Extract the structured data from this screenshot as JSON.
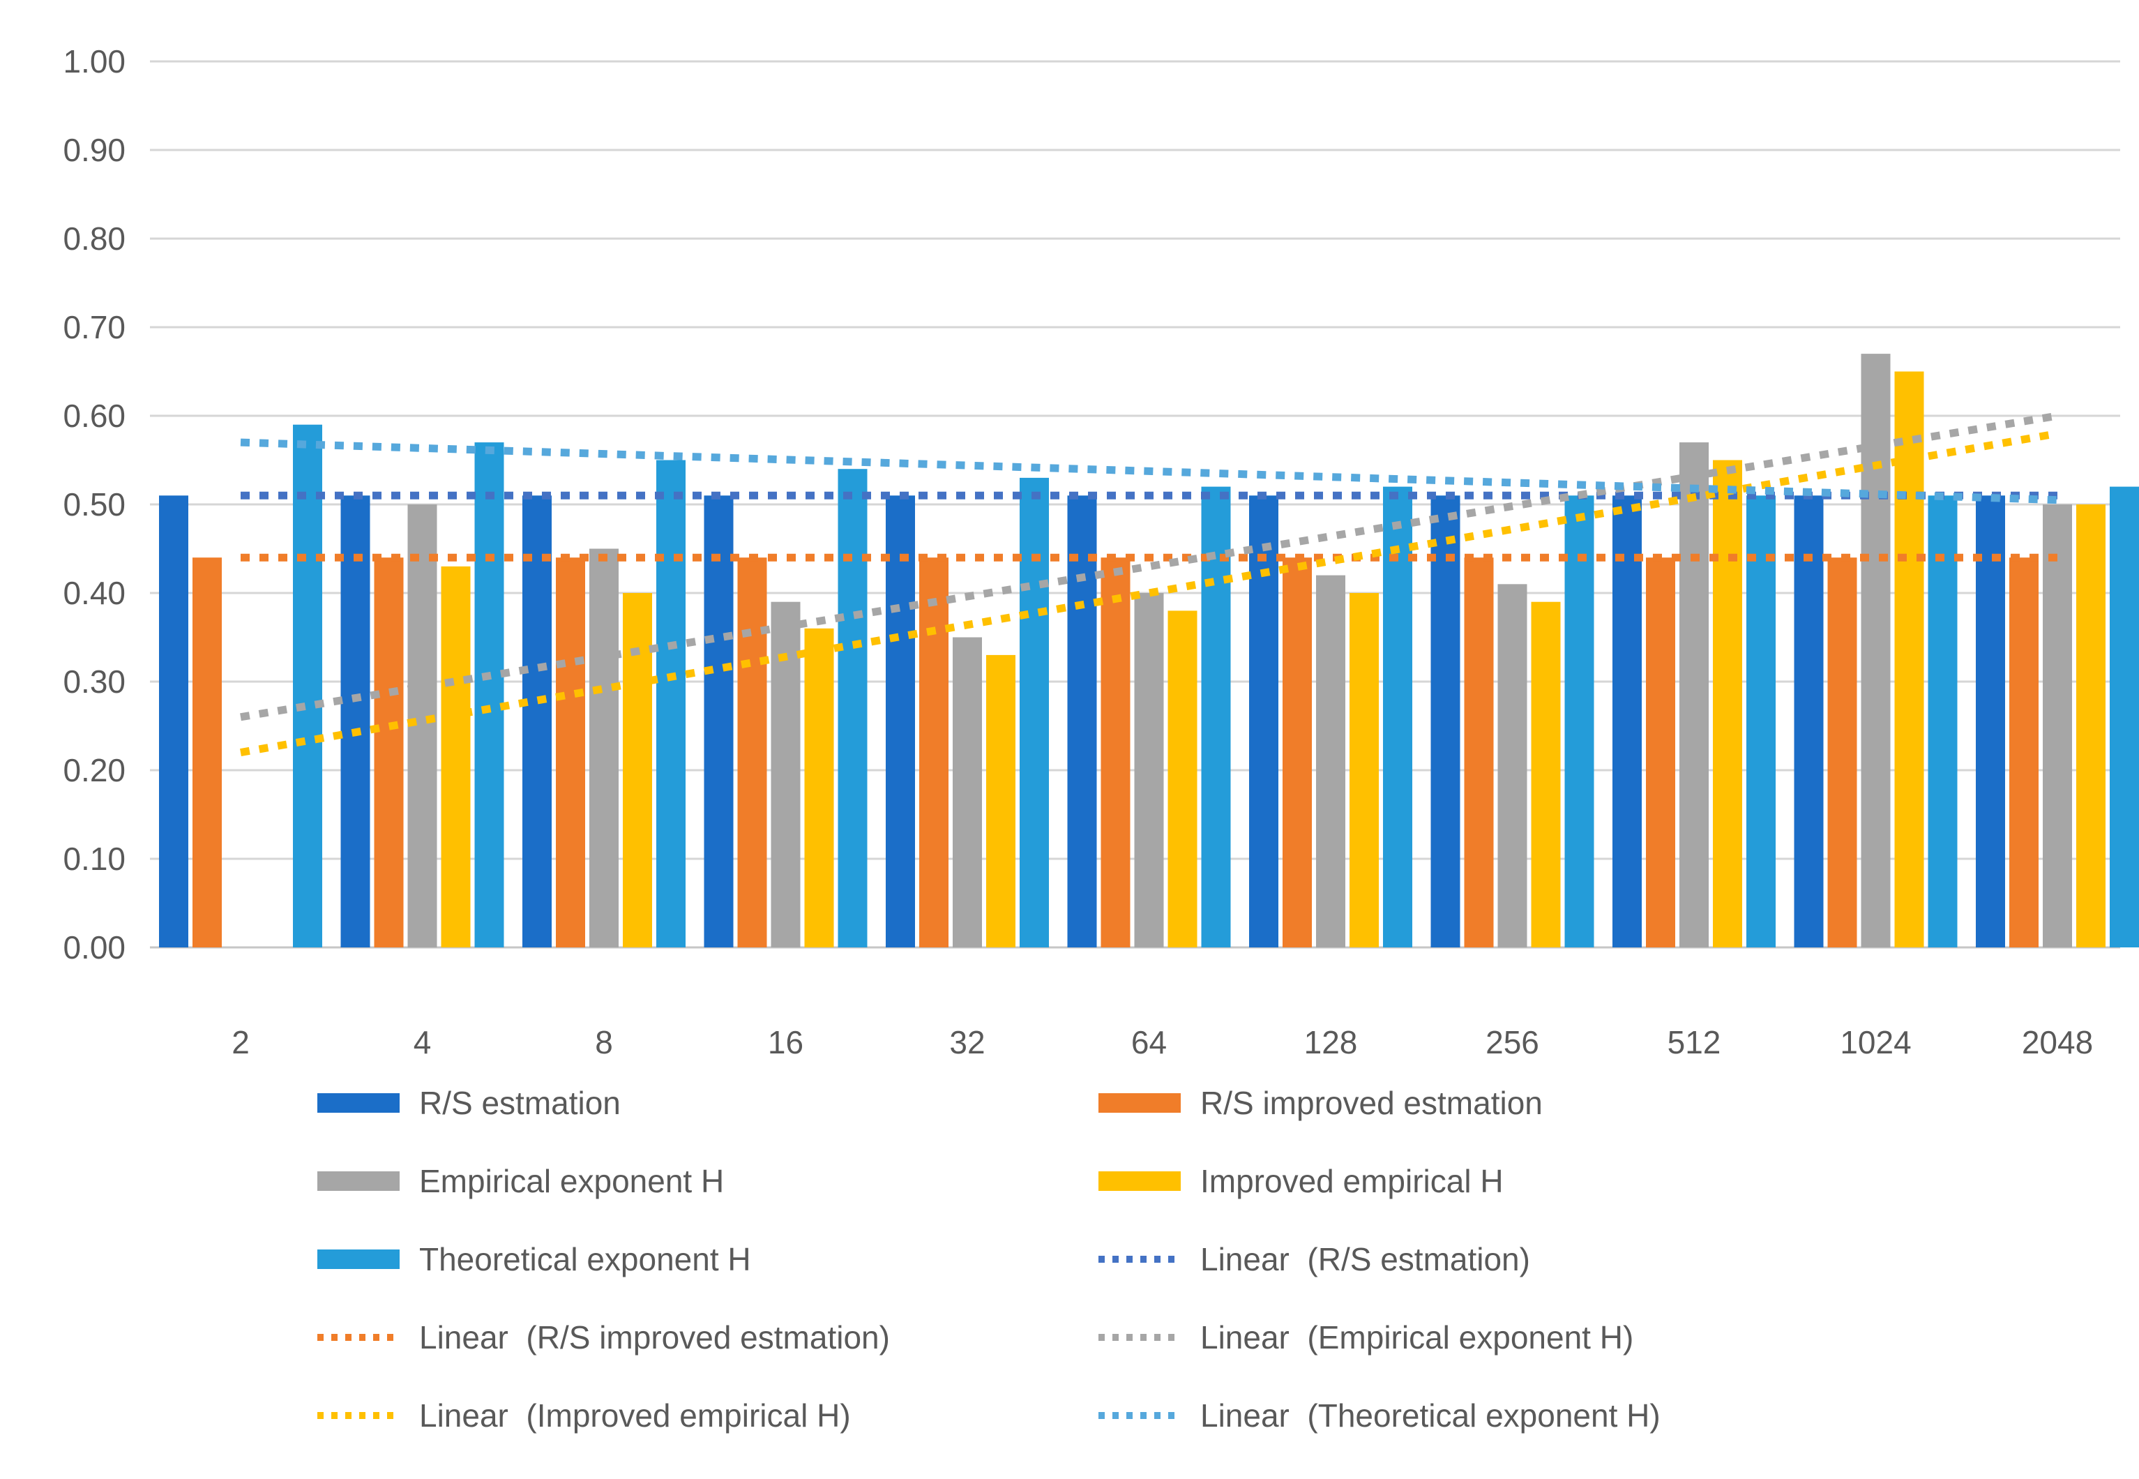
{
  "chart_data": {
    "type": "bar",
    "title": "",
    "xlabel": "",
    "ylabel": "",
    "categories": [
      "2",
      "4",
      "8",
      "16",
      "32",
      "64",
      "128",
      "256",
      "512",
      "1024",
      "2048"
    ],
    "series": [
      {
        "name": "R/S estmation",
        "color": "#1B6EC8",
        "values": [
          0.51,
          0.51,
          0.51,
          0.51,
          0.51,
          0.51,
          0.51,
          0.51,
          0.51,
          0.51,
          0.51
        ]
      },
      {
        "name": "R/S improved estmation",
        "color": "#F07D29",
        "values": [
          0.44,
          0.44,
          0.44,
          0.44,
          0.44,
          0.44,
          0.44,
          0.44,
          0.44,
          0.44,
          0.44
        ]
      },
      {
        "name": "Empirical exponent H",
        "color": "#A6A6A6",
        "values": [
          null,
          0.5,
          0.45,
          0.39,
          0.35,
          0.4,
          0.42,
          0.41,
          0.57,
          0.67,
          0.5
        ]
      },
      {
        "name": "Improved empirical H",
        "color": "#FFC000",
        "values": [
          null,
          0.43,
          0.4,
          0.36,
          0.33,
          0.38,
          0.4,
          0.39,
          0.55,
          0.65,
          0.5
        ]
      },
      {
        "name": "Theoretical exponent H",
        "color": "#249CD9",
        "values": [
          0.59,
          0.57,
          0.55,
          0.54,
          0.53,
          0.52,
          0.52,
          0.51,
          0.51,
          0.51,
          0.52
        ]
      }
    ],
    "trendlines": [
      {
        "name": "Linear  (R/S estmation)",
        "color": "#4472C4",
        "start": 0.51,
        "end": 0.51
      },
      {
        "name": "Linear  (R/S improved estmation)",
        "color": "#F07D29",
        "start": 0.44,
        "end": 0.44
      },
      {
        "name": "Linear  (Empirical exponent H)",
        "color": "#A6A6A6",
        "start": 0.26,
        "end": 0.6
      },
      {
        "name": "Linear  (Improved empirical H)",
        "color": "#FFC000",
        "start": 0.22,
        "end": 0.58
      },
      {
        "name": "Linear  (Theoretical exponent H)",
        "color": "#56A8DC",
        "start": 0.57,
        "end": 0.505
      }
    ],
    "ylim": [
      0.0,
      1.0
    ],
    "ytick_step": 0.1,
    "ytick_labels": [
      "0.00",
      "0.10",
      "0.20",
      "0.30",
      "0.40",
      "0.50",
      "0.60",
      "0.70",
      "0.80",
      "0.90",
      "1.00"
    ],
    "grid": true,
    "legend_position": "bottom"
  },
  "legend": {
    "items": [
      {
        "label": "R/S estmation",
        "marker": "bar",
        "color": "#1B6EC8"
      },
      {
        "label": "R/S improved estmation",
        "marker": "bar",
        "color": "#F07D29"
      },
      {
        "label": "Empirical exponent H",
        "marker": "bar",
        "color": "#A6A6A6"
      },
      {
        "label": "Improved empirical H",
        "marker": "bar",
        "color": "#FFC000"
      },
      {
        "label": "Theoretical exponent H",
        "marker": "bar",
        "color": "#249CD9"
      },
      {
        "label": "Linear  (R/S estmation)",
        "marker": "line",
        "color": "#4472C4"
      },
      {
        "label": "Linear  (R/S improved estmation)",
        "marker": "line",
        "color": "#F07D29"
      },
      {
        "label": "Linear  (Empirical exponent H)",
        "marker": "line",
        "color": "#A6A6A6"
      },
      {
        "label": "Linear  (Improved empirical H)",
        "marker": "line",
        "color": "#FFC000"
      },
      {
        "label": "Linear  (Theoretical exponent H)",
        "marker": "line",
        "color": "#56A8DC"
      }
    ]
  },
  "style": {
    "grid_color": "#D6D6D6",
    "axis_line_color": "#C6C6C6",
    "text_color": "#595959",
    "background": "#FFFFFF"
  }
}
